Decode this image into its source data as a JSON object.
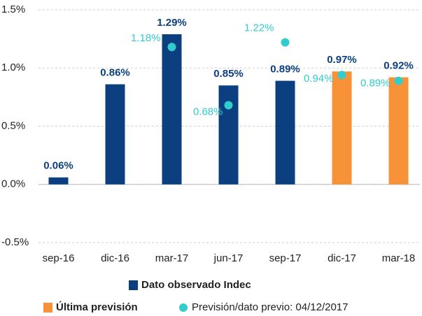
{
  "chart_data": {
    "type": "bar",
    "categories": [
      "sep-16",
      "dic-16",
      "mar-17",
      "jun-17",
      "sep-17",
      "dic-17",
      "mar-18"
    ],
    "series": [
      {
        "name": "Dato observado Indec",
        "color": "#0b3f7f",
        "values": [
          0.06,
          0.86,
          1.29,
          0.85,
          0.89,
          null,
          null
        ],
        "value_labels": [
          "0.06%",
          "0.86%",
          "1.29%",
          "0.85%",
          "0.89%",
          null,
          null
        ]
      },
      {
        "name": "Última previsión",
        "color": "#f79238",
        "values": [
          null,
          null,
          null,
          null,
          null,
          0.97,
          0.92
        ],
        "value_labels": [
          null,
          null,
          null,
          null,
          null,
          "0.97%",
          "0.92%"
        ]
      },
      {
        "name": "Previsión/dato previo: 04/12/2017",
        "type": "scatter",
        "color": "#33cccc",
        "values": [
          null,
          null,
          1.18,
          0.68,
          1.22,
          0.94,
          0.89
        ],
        "value_labels": [
          null,
          null,
          "1.18%",
          "0.68%",
          "1.22%",
          "0.94%",
          "0.89%"
        ]
      }
    ],
    "ylim": [
      -0.5,
      1.5
    ],
    "yticks": [
      {
        "value": -0.5,
        "label": "-0.5%"
      },
      {
        "value": 0,
        "label": "0.0%"
      },
      {
        "value": 0.5,
        "label": "0.5%"
      },
      {
        "value": 1,
        "label": "1.0%"
      },
      {
        "value": 1.5,
        "label": "1.5%"
      }
    ],
    "grid": true
  }
}
